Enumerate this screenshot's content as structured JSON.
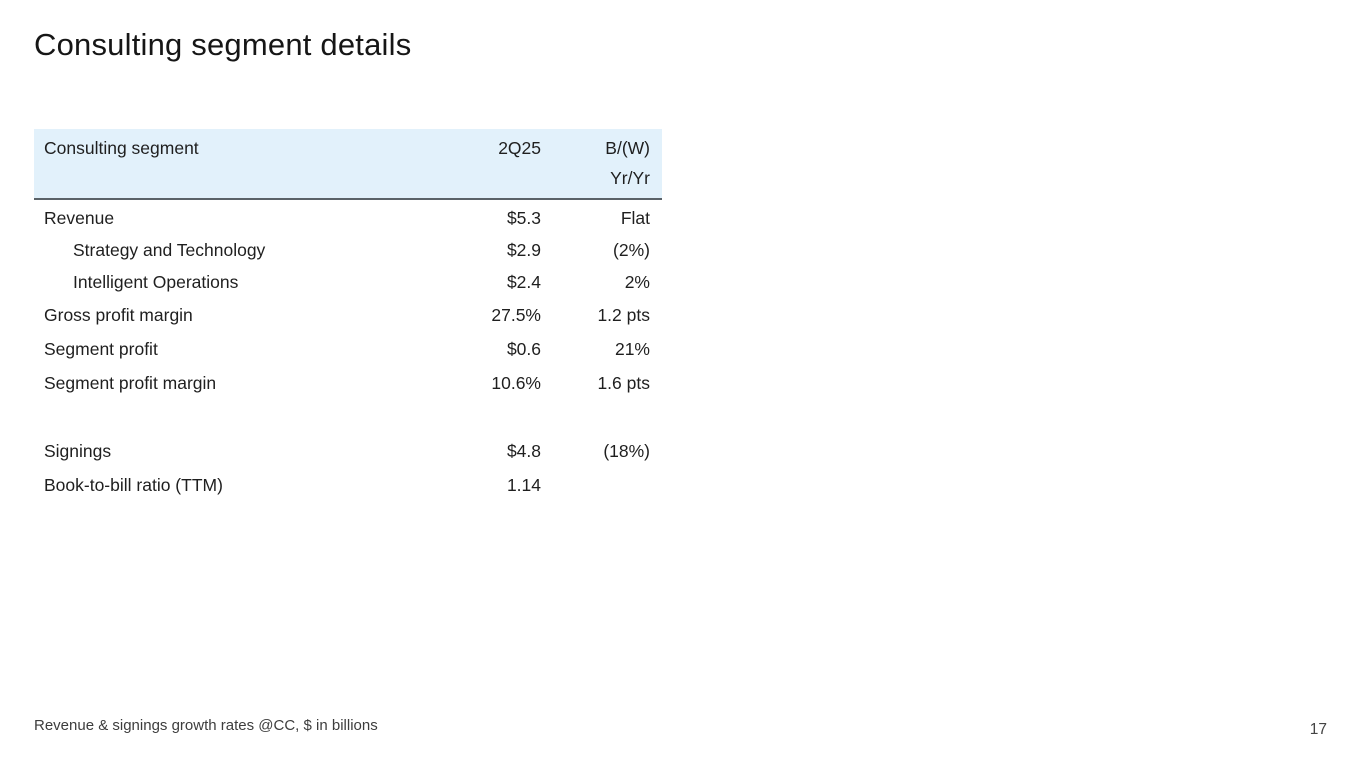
{
  "slide": {
    "title": "Consulting segment details",
    "footnote": "Revenue & signings growth rates @CC, $ in billions",
    "page_number": "17"
  },
  "table": {
    "header": {
      "label": "Consulting segment",
      "period": "2Q25",
      "change_line1": "B/(W)",
      "change_line2": "Yr/Yr"
    },
    "rows": [
      {
        "label": "Revenue",
        "value": "$5.3",
        "yoy": "Flat"
      },
      {
        "label": "Strategy and Technology",
        "value": "$2.9",
        "yoy": "(2%)"
      },
      {
        "label": "Intelligent Operations",
        "value": "$2.4",
        "yoy": "2%"
      },
      {
        "label": "Gross profit margin",
        "value": "27.5%",
        "yoy": "1.2 pts"
      },
      {
        "label": "Segment profit",
        "value": "$0.6",
        "yoy": "21%"
      },
      {
        "label": "Segment profit margin",
        "value": "10.6%",
        "yoy": "1.6 pts"
      },
      {
        "label": "Signings",
        "value": "$4.8",
        "yoy": "(18%)"
      },
      {
        "label": "Book-to-bill ratio (TTM)",
        "value": "1.14",
        "yoy": ""
      }
    ]
  },
  "colors": {
    "header_background": "#e2f1fb",
    "header_border": "#5a6268",
    "text": "#1f1f1f"
  }
}
